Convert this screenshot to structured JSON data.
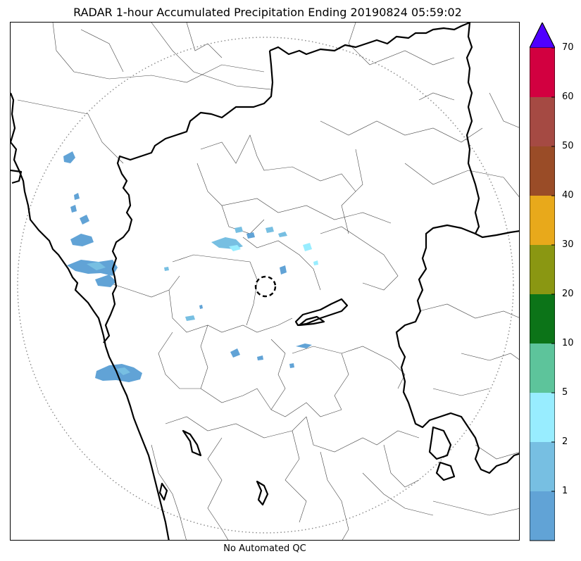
{
  "title": "RADAR 1-hour Accumulated Precipitation Ending 20190824 05:59:02",
  "footer_note": "No Automated QC",
  "colorbar": {
    "bins": [
      {
        "label": "",
        "color": "#61a3d6"
      },
      {
        "label": "1",
        "color": "#77bfe2"
      },
      {
        "label": "2",
        "color": "#98edff"
      },
      {
        "label": "5",
        "color": "#5dc49b"
      },
      {
        "label": "10",
        "color": "#0c7418"
      },
      {
        "label": "20",
        "color": "#8a9712"
      },
      {
        "label": "30",
        "color": "#e8a91b"
      },
      {
        "label": "40",
        "color": "#9a4c27"
      },
      {
        "label": "50",
        "color": "#a54a43"
      },
      {
        "label": "60",
        "color": "#d20040"
      }
    ],
    "top_label": "70",
    "extend_color": "#4f00ff"
  }
}
